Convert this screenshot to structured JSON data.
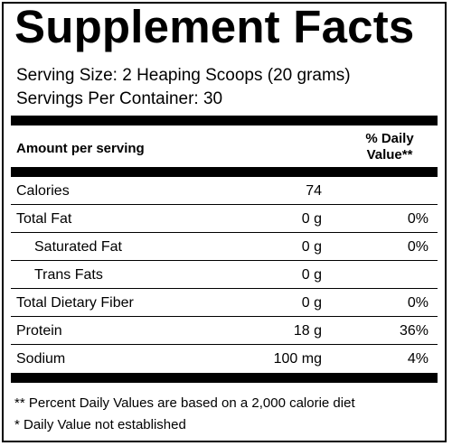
{
  "title": "Supplement Facts",
  "serving_size": "Serving Size: 2 Heaping Scoops (20 grams)",
  "servings_per_container": "Servings Per Container: 30",
  "header": {
    "amount_per_serving": "Amount per serving",
    "daily_value_line1": "% Daily",
    "daily_value_line2": "Value**"
  },
  "rows": [
    {
      "name": "Calories",
      "amount": "74",
      "dv": ""
    },
    {
      "name": "Total Fat",
      "amount": "0 g",
      "dv": "0%"
    },
    {
      "name": "Saturated Fat",
      "amount": "0 g",
      "dv": "0%"
    },
    {
      "name": "Trans Fats",
      "amount": "0 g",
      "dv": ""
    },
    {
      "name": "Total Dietary Fiber",
      "amount": "0 g",
      "dv": "0%"
    },
    {
      "name": "Protein",
      "amount": "18 g",
      "dv": "36%"
    },
    {
      "name": "Sodium",
      "amount": "100 mg",
      "dv": "4%"
    }
  ],
  "footnotes": [
    "** Percent Daily Values are based on a 2,000 calorie diet",
    "* Daily Value not established"
  ],
  "colors": {
    "text": "#000000",
    "background": "#ffffff"
  }
}
